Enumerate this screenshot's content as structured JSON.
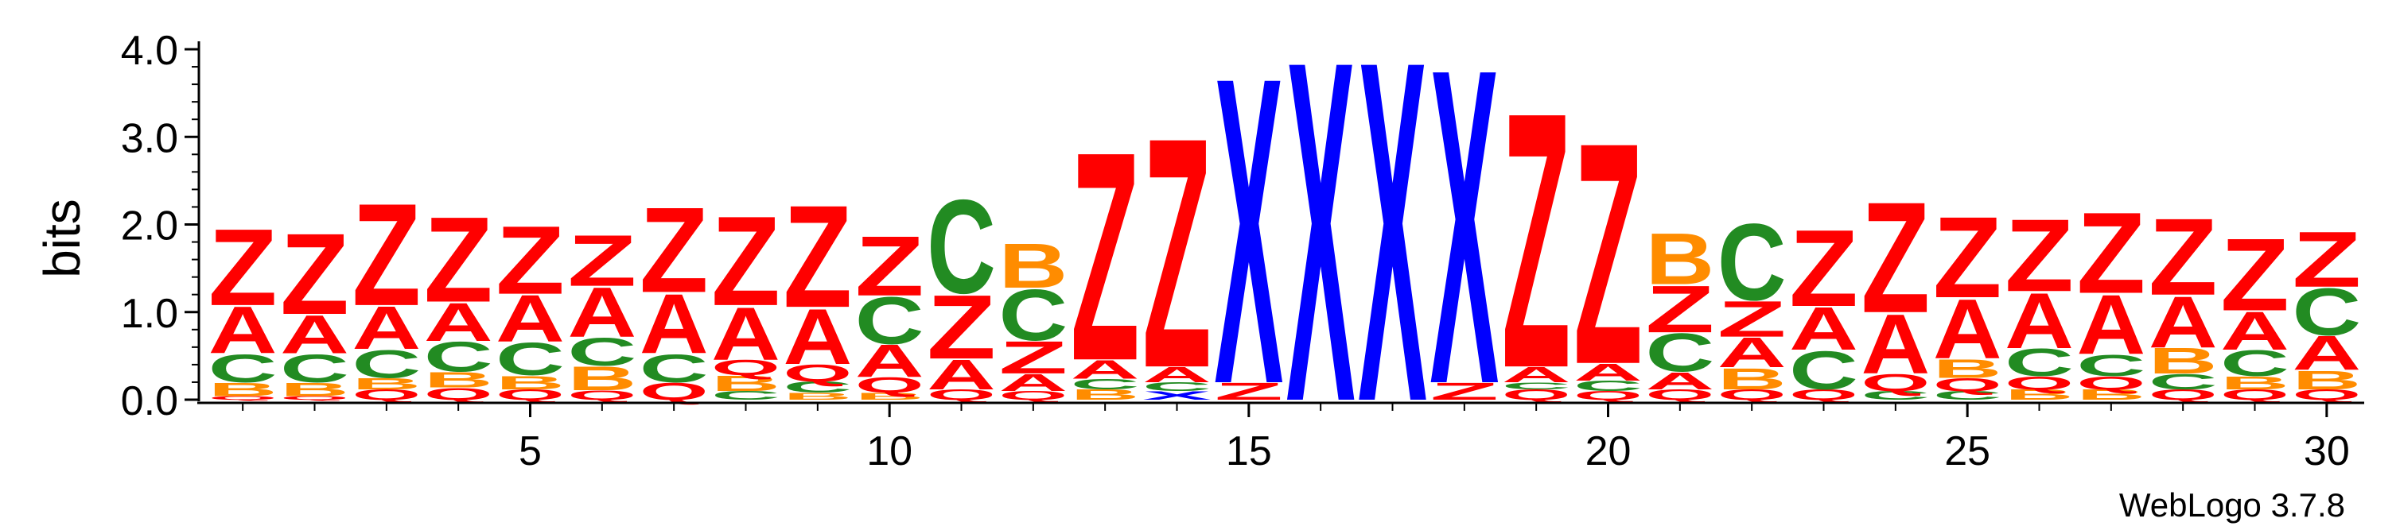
{
  "chart_data": {
    "type": "sequence-logo",
    "ylabel": "bits",
    "ylim": [
      0,
      4.0
    ],
    "y_ticks": [
      "0.0",
      "1.0",
      "2.0",
      "3.0",
      "4.0"
    ],
    "x_range": [
      1,
      30
    ],
    "x_tick_labels": [
      "5",
      "10",
      "15",
      "20",
      "25",
      "30"
    ],
    "colors": {
      "Z": "#ff0000",
      "A": "#ff0000",
      "C": "#228b22",
      "B": "#ff8c00",
      "Q": "#ff0000",
      "X": "#0000ff"
    },
    "columns": [
      {
        "position": 1,
        "letters": [
          {
            "l": "Q",
            "h": 0.04
          },
          {
            "l": "B",
            "h": 0.16
          },
          {
            "l": "C",
            "h": 0.33
          },
          {
            "l": "A",
            "h": 0.55
          },
          {
            "l": "Z",
            "h": 0.9
          }
        ]
      },
      {
        "position": 2,
        "letters": [
          {
            "l": "Q",
            "h": 0.04
          },
          {
            "l": "B",
            "h": 0.16
          },
          {
            "l": "C",
            "h": 0.33
          },
          {
            "l": "A",
            "h": 0.45
          },
          {
            "l": "Z",
            "h": 0.95
          }
        ]
      },
      {
        "position": 3,
        "letters": [
          {
            "l": "Q",
            "h": 0.12
          },
          {
            "l": "B",
            "h": 0.13
          },
          {
            "l": "C",
            "h": 0.33
          },
          {
            "l": "A",
            "h": 0.5
          },
          {
            "l": "Z",
            "h": 1.2
          }
        ]
      },
      {
        "position": 4,
        "letters": [
          {
            "l": "Q",
            "h": 0.14
          },
          {
            "l": "B",
            "h": 0.18
          },
          {
            "l": "C",
            "h": 0.35
          },
          {
            "l": "A",
            "h": 0.45
          },
          {
            "l": "Z",
            "h": 1.0
          }
        ]
      },
      {
        "position": 5,
        "letters": [
          {
            "l": "Q",
            "h": 0.12
          },
          {
            "l": "B",
            "h": 0.16
          },
          {
            "l": "C",
            "h": 0.38
          },
          {
            "l": "A",
            "h": 0.55
          },
          {
            "l": "Z",
            "h": 0.8
          }
        ]
      },
      {
        "position": 6,
        "letters": [
          {
            "l": "Q",
            "h": 0.11
          },
          {
            "l": "B",
            "h": 0.28
          },
          {
            "l": "C",
            "h": 0.33
          },
          {
            "l": "A",
            "h": 0.58
          },
          {
            "l": "Z",
            "h": 0.6
          }
        ]
      },
      {
        "position": 7,
        "letters": [
          {
            "l": "Q",
            "h": 0.2
          },
          {
            "l": "C",
            "h": 0.33
          },
          {
            "l": "A",
            "h": 0.7
          },
          {
            "l": "Z",
            "h": 1.0
          }
        ]
      },
      {
        "position": 8,
        "letters": [
          {
            "l": "C",
            "h": 0.1
          },
          {
            "l": "B",
            "h": 0.18
          },
          {
            "l": "Q",
            "h": 0.18
          },
          {
            "l": "A",
            "h": 0.62
          },
          {
            "l": "Z",
            "h": 1.05
          }
        ]
      },
      {
        "position": 9,
        "letters": [
          {
            "l": "B",
            "h": 0.08
          },
          {
            "l": "C",
            "h": 0.13
          },
          {
            "l": "Q",
            "h": 0.2
          },
          {
            "l": "A",
            "h": 0.65
          },
          {
            "l": "Z",
            "h": 1.2
          }
        ]
      },
      {
        "position": 10,
        "letters": [
          {
            "l": "B",
            "h": 0.08
          },
          {
            "l": "Q",
            "h": 0.18
          },
          {
            "l": "A",
            "h": 0.38
          },
          {
            "l": "C",
            "h": 0.55
          },
          {
            "l": "Z",
            "h": 0.7
          }
        ]
      },
      {
        "position": 11,
        "letters": [
          {
            "l": "Q",
            "h": 0.12
          },
          {
            "l": "A",
            "h": 0.35
          },
          {
            "l": "Z",
            "h": 0.75
          },
          {
            "l": "C",
            "h": 1.1
          }
        ]
      },
      {
        "position": 12,
        "letters": [
          {
            "l": "Q",
            "h": 0.1
          },
          {
            "l": "A",
            "h": 0.2
          },
          {
            "l": "Z",
            "h": 0.38
          },
          {
            "l": "C",
            "h": 0.6
          },
          {
            "l": "B",
            "h": 0.52
          }
        ]
      },
      {
        "position": 13,
        "letters": [
          {
            "l": "B",
            "h": 0.12
          },
          {
            "l": "C",
            "h": 0.12
          },
          {
            "l": "A",
            "h": 0.22
          },
          {
            "l": "Z",
            "h": 2.45
          }
        ]
      },
      {
        "position": 14,
        "letters": [
          {
            "l": "X",
            "h": 0.1
          },
          {
            "l": "C",
            "h": 0.1
          },
          {
            "l": "A",
            "h": 0.18
          },
          {
            "l": "Z",
            "h": 2.7
          }
        ]
      },
      {
        "position": 15,
        "letters": [
          {
            "l": "Z",
            "h": 0.2
          },
          {
            "l": "X",
            "h": 3.6
          }
        ]
      },
      {
        "position": 16,
        "letters": [
          {
            "l": "X",
            "h": 4.0
          }
        ]
      },
      {
        "position": 17,
        "letters": [
          {
            "l": "X",
            "h": 4.0
          }
        ]
      },
      {
        "position": 18,
        "letters": [
          {
            "l": "Z",
            "h": 0.2
          },
          {
            "l": "X",
            "h": 3.7
          }
        ]
      },
      {
        "position": 19,
        "letters": [
          {
            "l": "Q",
            "h": 0.12
          },
          {
            "l": "C",
            "h": 0.08
          },
          {
            "l": "A",
            "h": 0.18
          },
          {
            "l": "Z",
            "h": 3.0
          }
        ]
      },
      {
        "position": 20,
        "letters": [
          {
            "l": "Q",
            "h": 0.1
          },
          {
            "l": "C",
            "h": 0.12
          },
          {
            "l": "A",
            "h": 0.2
          },
          {
            "l": "Z",
            "h": 2.6
          }
        ]
      },
      {
        "position": 21,
        "letters": [
          {
            "l": "Q",
            "h": 0.12
          },
          {
            "l": "A",
            "h": 0.2
          },
          {
            "l": "C",
            "h": 0.45
          },
          {
            "l": "Z",
            "h": 0.55
          },
          {
            "l": "B",
            "h": 0.6
          }
        ]
      },
      {
        "position": 22,
        "letters": [
          {
            "l": "Q",
            "h": 0.12
          },
          {
            "l": "B",
            "h": 0.25
          },
          {
            "l": "A",
            "h": 0.35
          },
          {
            "l": "Z",
            "h": 0.42
          },
          {
            "l": "C",
            "h": 0.9
          }
        ]
      },
      {
        "position": 23,
        "letters": [
          {
            "l": "Q",
            "h": 0.12
          },
          {
            "l": "C",
            "h": 0.45
          },
          {
            "l": "A",
            "h": 0.5
          },
          {
            "l": "Z",
            "h": 0.9
          }
        ]
      },
      {
        "position": 24,
        "letters": [
          {
            "l": "C",
            "h": 0.1
          },
          {
            "l": "Q",
            "h": 0.2
          },
          {
            "l": "A",
            "h": 0.7
          },
          {
            "l": "Z",
            "h": 1.3
          }
        ]
      },
      {
        "position": 25,
        "letters": [
          {
            "l": "C",
            "h": 0.1
          },
          {
            "l": "Q",
            "h": 0.15
          },
          {
            "l": "B",
            "h": 0.22
          },
          {
            "l": "A",
            "h": 0.7
          },
          {
            "l": "Z",
            "h": 0.95
          }
        ]
      },
      {
        "position": 26,
        "letters": [
          {
            "l": "B",
            "h": 0.12
          },
          {
            "l": "Q",
            "h": 0.15
          },
          {
            "l": "C",
            "h": 0.32
          },
          {
            "l": "A",
            "h": 0.65
          },
          {
            "l": "Z",
            "h": 0.85
          }
        ]
      },
      {
        "position": 27,
        "letters": [
          {
            "l": "B",
            "h": 0.12
          },
          {
            "l": "Q",
            "h": 0.15
          },
          {
            "l": "C",
            "h": 0.25
          },
          {
            "l": "A",
            "h": 0.7
          },
          {
            "l": "Z",
            "h": 0.95
          }
        ]
      },
      {
        "position": 28,
        "letters": [
          {
            "l": "Q",
            "h": 0.12
          },
          {
            "l": "C",
            "h": 0.18
          },
          {
            "l": "B",
            "h": 0.3
          },
          {
            "l": "A",
            "h": 0.6
          },
          {
            "l": "Z",
            "h": 0.9
          }
        ]
      },
      {
        "position": 29,
        "letters": [
          {
            "l": "Q",
            "h": 0.12
          },
          {
            "l": "B",
            "h": 0.15
          },
          {
            "l": "C",
            "h": 0.3
          },
          {
            "l": "A",
            "h": 0.45
          },
          {
            "l": "Z",
            "h": 0.85
          }
        ]
      },
      {
        "position": 30,
        "letters": [
          {
            "l": "Q",
            "h": 0.12
          },
          {
            "l": "B",
            "h": 0.22
          },
          {
            "l": "A",
            "h": 0.4
          },
          {
            "l": "C",
            "h": 0.55
          },
          {
            "l": "Z",
            "h": 0.65
          }
        ]
      }
    ]
  },
  "footer": {
    "software_label": "WebLogo 3.7.8"
  }
}
